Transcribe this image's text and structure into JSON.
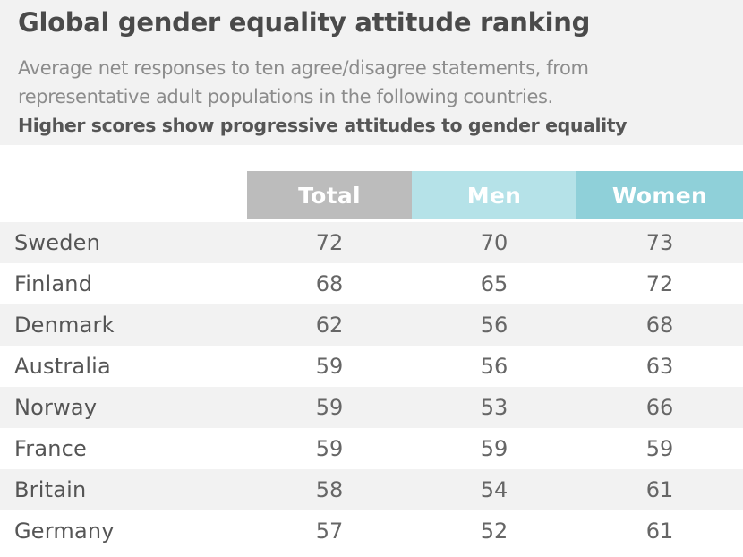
{
  "chart_data": {
    "type": "table",
    "title": "Global gender equality attitude ranking",
    "subtitle_lines": [
      "Average net responses to ten agree/disagree statements, from",
      "representative adult populations in the following countries."
    ],
    "subtitle_bold": "Higher scores show progressive attitudes to gender equality",
    "columns": [
      "Total",
      "Men",
      "Women"
    ],
    "rows": [
      {
        "country": "Sweden",
        "total": "72",
        "men": "70",
        "women": "73"
      },
      {
        "country": "Finland",
        "total": "68",
        "men": "65",
        "women": "72"
      },
      {
        "country": "Denmark",
        "total": "62",
        "men": "56",
        "women": "68"
      },
      {
        "country": "Australia",
        "total": "59",
        "men": "56",
        "women": "63"
      },
      {
        "country": "Norway",
        "total": "59",
        "men": "53",
        "women": "66"
      },
      {
        "country": "France",
        "total": "59",
        "men": "59",
        "women": "59"
      },
      {
        "country": "Britain",
        "total": "58",
        "men": "54",
        "women": "61"
      },
      {
        "country": "Germany",
        "total": "57",
        "men": "52",
        "women": "61"
      }
    ],
    "colors": {
      "total_header": "#bcbcbc",
      "men_header": "#b5e2e8",
      "women_header": "#8fd0d9",
      "band": "#f2f2f2"
    }
  }
}
